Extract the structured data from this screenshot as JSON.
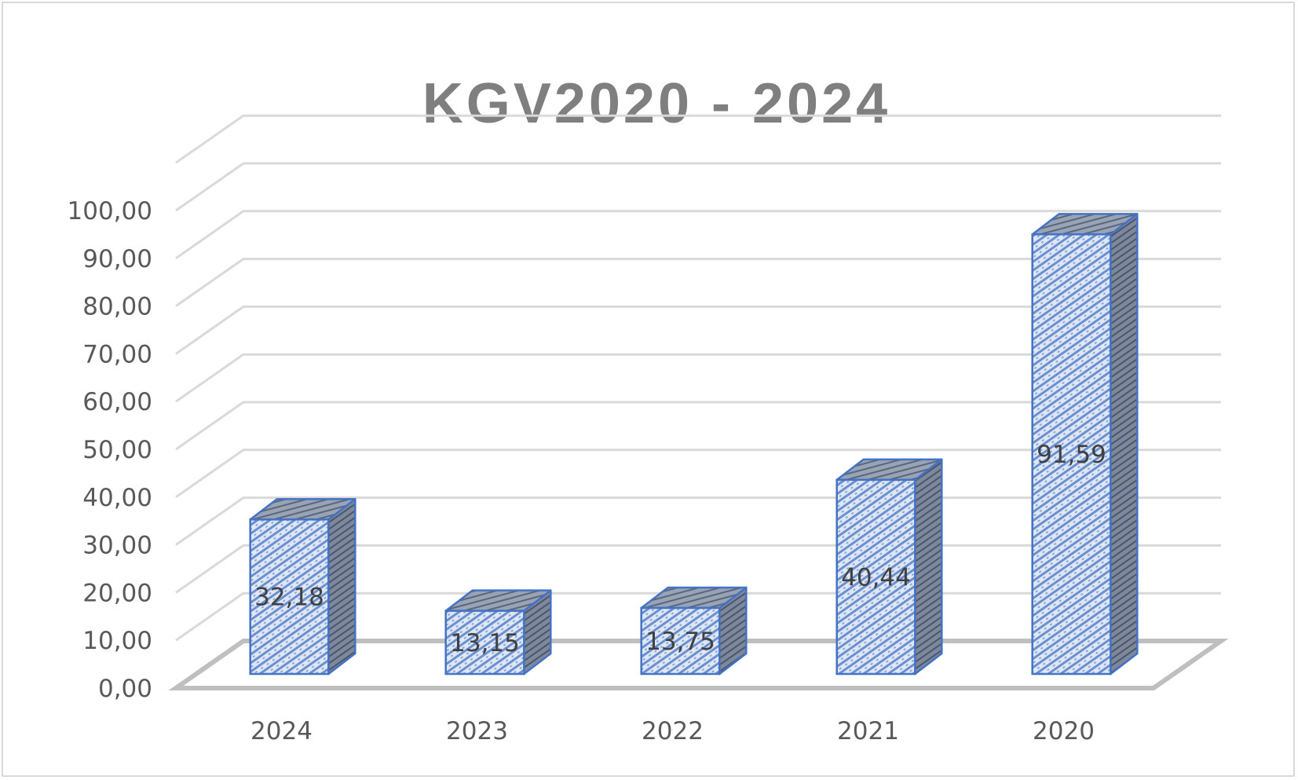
{
  "chart_data": {
    "type": "bar",
    "title": "KGV2020 - 2024",
    "categories": [
      "2024",
      "2023",
      "2022",
      "2021",
      "2020"
    ],
    "values": [
      32.18,
      13.15,
      13.75,
      40.44,
      91.59
    ],
    "data_labels": [
      "32,18",
      "13,15",
      "13,75",
      "40,44",
      "91,59"
    ],
    "ylim": [
      0,
      100
    ],
    "yticks": [
      "0,00",
      "10,00",
      "20,00",
      "30,00",
      "40,00",
      "50,00",
      "60,00",
      "70,00",
      "80,00",
      "90,00",
      "100,00"
    ],
    "xlabel": "",
    "ylabel": "",
    "grid": true,
    "legend": "none",
    "style": "3d-column",
    "colors": {
      "bar_border": "#4472c4",
      "bar_fill": "#dae3f3",
      "bar_side": "#7f8ba0",
      "grid": "#d9d9d9",
      "floor": "#bfbfbf",
      "title": "#7f7f7f",
      "text": "#595959"
    }
  }
}
